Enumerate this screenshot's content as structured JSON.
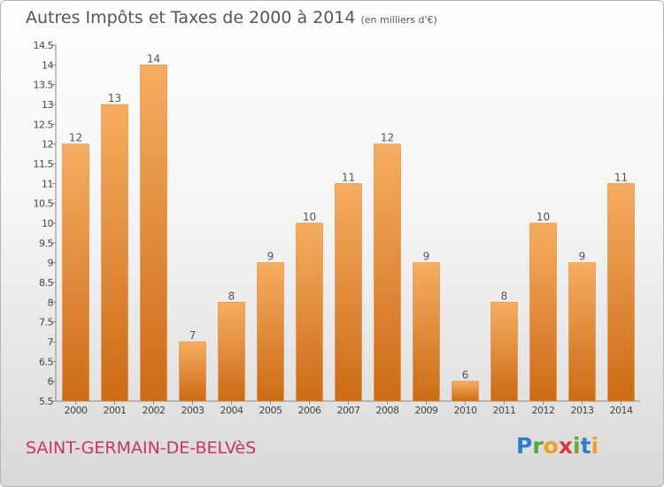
{
  "title": {
    "main": "Autres Impôts et Taxes de 2000 à 2014",
    "unit": "(en milliers d'€)"
  },
  "commune": "SAINT-GERMAIN-DE-BELVèS",
  "logo": {
    "text": "Proxiti",
    "letters": [
      "P",
      "r",
      "o",
      "x",
      "i",
      "t",
      "i"
    ]
  },
  "colors": {
    "bar_light": "#f6ad61",
    "bar_dark": "#cc6b16",
    "commune": "#c8385a",
    "title": "#555555"
  },
  "chart_data": {
    "type": "bar",
    "categories": [
      "2000",
      "2001",
      "2002",
      "2003",
      "2004",
      "2005",
      "2006",
      "2007",
      "2008",
      "2009",
      "2010",
      "2011",
      "2012",
      "2013",
      "2014"
    ],
    "values": [
      12,
      13,
      14,
      7,
      8,
      9,
      10,
      11,
      12,
      9,
      6,
      8,
      10,
      9,
      11
    ],
    "data_labels": [
      "12",
      "13",
      "14",
      "7",
      "8",
      "9",
      "10",
      "11",
      "12",
      "9",
      "6",
      "8",
      "10",
      "9",
      "11"
    ],
    "ylim": [
      5.5,
      14.5
    ],
    "y_ticks": [
      "5.5",
      "6",
      "6.5",
      "7",
      "7.5",
      "8",
      "8.5",
      "9",
      "9.5",
      "10",
      "10.5",
      "11",
      "11.5",
      "12",
      "12.5",
      "13",
      "13.5",
      "14",
      "14.5"
    ],
    "y_tick_values": [
      5.5,
      6,
      6.5,
      7,
      7.5,
      8,
      8.5,
      9,
      9.5,
      10,
      10.5,
      11,
      11.5,
      12,
      12.5,
      13,
      13.5,
      14,
      14.5
    ],
    "grid": false,
    "legend": "none"
  }
}
